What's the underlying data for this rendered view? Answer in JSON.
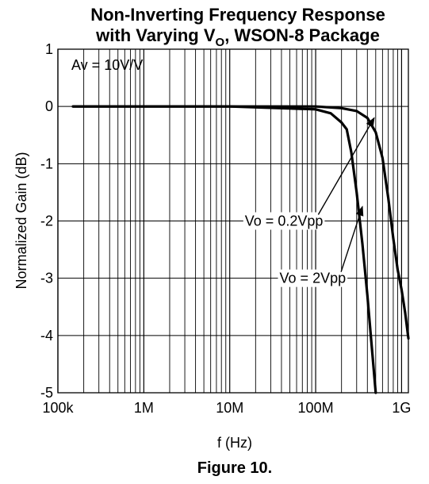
{
  "chart_data": {
    "type": "line",
    "title_line1": "Non-Inverting Frequency Response",
    "title_line2_prefix": "with Varying V",
    "title_line2_sub": "O",
    "title_line2_suffix": ", WSON-8 Package",
    "xlabel": "f (Hz)",
    "ylabel": "Normalized Gain (dB)",
    "x_scale": "log",
    "xlim": [
      100000,
      1200000000
    ],
    "ylim": [
      -5,
      1
    ],
    "x_major_ticks": [
      100000,
      1000000,
      10000000,
      100000000,
      1000000000
    ],
    "x_tick_labels": [
      "100k",
      "1M",
      "10M",
      "100M",
      "1G"
    ],
    "y_ticks": [
      1,
      0,
      -1,
      -2,
      -3,
      -4,
      -5
    ],
    "y_tick_labels": [
      "1",
      "0",
      "-1",
      "-2",
      "-3",
      "-4",
      "-5"
    ],
    "grid": true,
    "gain_annotation": "Av = 10V/V",
    "figure_caption": "Figure 10.",
    "series": [
      {
        "name": "Vo = 0.2Vpp",
        "x": [
          150000,
          1000000,
          10000000,
          100000000,
          200000000,
          300000000,
          400000000,
          500000000,
          600000000,
          700000000,
          800000000,
          900000000,
          1000000000,
          1100000000,
          1200000000
        ],
        "y": [
          0,
          0,
          0,
          0,
          -0.03,
          -0.08,
          -0.2,
          -0.45,
          -0.9,
          -1.6,
          -2.3,
          -2.85,
          -3.2,
          -3.6,
          -4.05
        ]
      },
      {
        "name": "Vo = 2Vpp",
        "x": [
          150000,
          1000000,
          10000000,
          100000000,
          150000000,
          200000000,
          230000000,
          260000000,
          300000000,
          350000000,
          400000000,
          450000000,
          500000000
        ],
        "y": [
          0,
          0,
          0,
          -0.05,
          -0.12,
          -0.28,
          -0.4,
          -0.8,
          -1.5,
          -2.4,
          -3.3,
          -4.2,
          -5
        ]
      }
    ],
    "labels": [
      {
        "text": "Vo = 0.2Vpp",
        "x": 15000000,
        "y": -2.0,
        "arrow_to_x": 480000000,
        "arrow_to_y": -0.2
      },
      {
        "text": "Vo = 2Vpp",
        "x": 38000000,
        "y": -3.0,
        "arrow_to_x": 350000000,
        "arrow_to_y": -1.75
      }
    ]
  }
}
